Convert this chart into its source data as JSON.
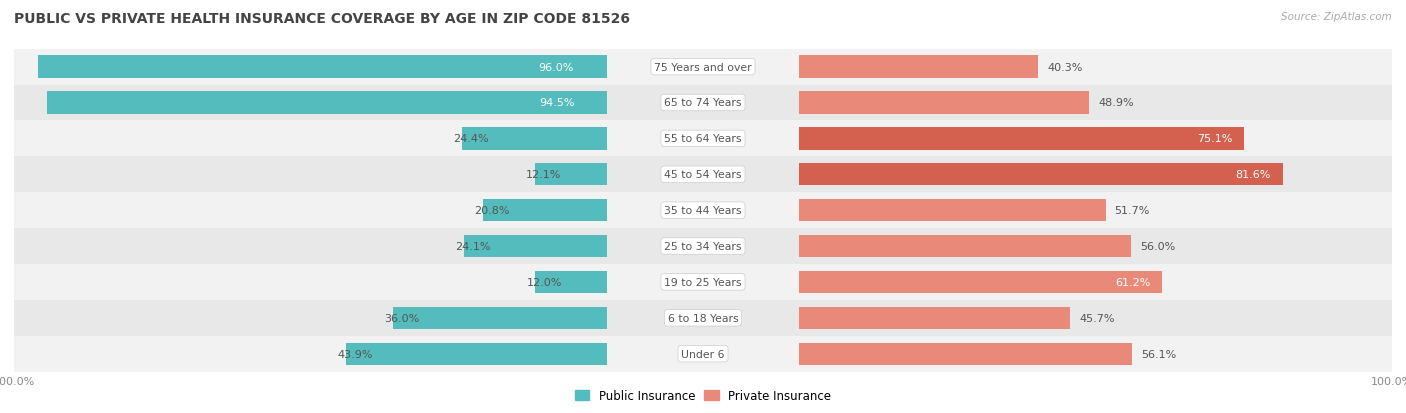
{
  "title": "PUBLIC VS PRIVATE HEALTH INSURANCE COVERAGE BY AGE IN ZIP CODE 81526",
  "source": "Source: ZipAtlas.com",
  "categories": [
    "Under 6",
    "6 to 18 Years",
    "19 to 25 Years",
    "25 to 34 Years",
    "35 to 44 Years",
    "45 to 54 Years",
    "55 to 64 Years",
    "65 to 74 Years",
    "75 Years and over"
  ],
  "public_values": [
    43.9,
    36.0,
    12.0,
    24.1,
    20.8,
    12.1,
    24.4,
    94.5,
    96.0
  ],
  "private_values": [
    56.1,
    45.7,
    61.2,
    56.0,
    51.7,
    81.6,
    75.1,
    48.9,
    40.3
  ],
  "public_color": "#55bcbe",
  "private_color": "#e8897a",
  "private_color_dark": "#d4614f",
  "row_bg_light": "#f2f2f2",
  "row_bg_dark": "#e8e8e8",
  "title_color": "#555555",
  "source_color": "#aaaaaa",
  "label_dark": "#555555",
  "label_white": "#ffffff",
  "max_value": 100.0,
  "bar_height": 0.62,
  "figsize": [
    14.06,
    4.14
  ],
  "dpi": 100
}
